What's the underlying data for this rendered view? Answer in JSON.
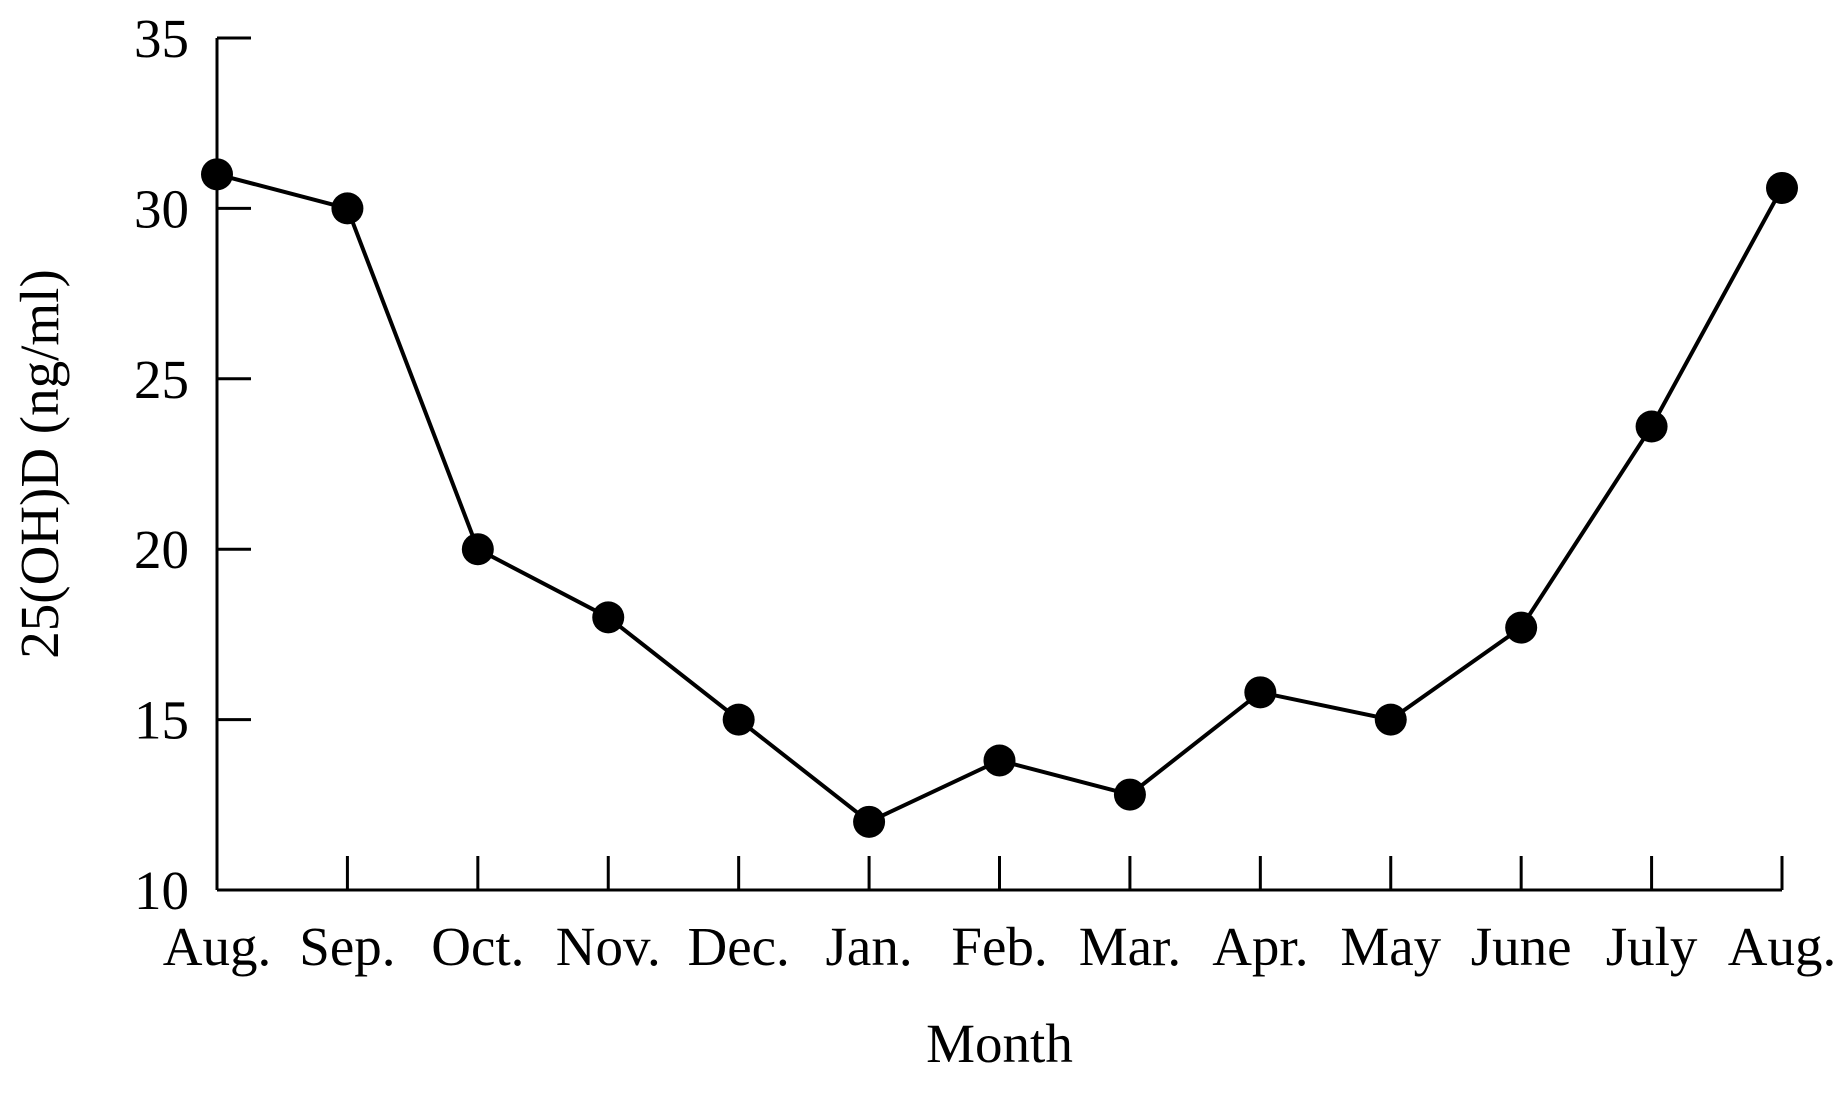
{
  "chart_data": {
    "type": "line",
    "title": "",
    "xlabel": "Month",
    "ylabel": "25(OH)D (ng/ml)",
    "categories": [
      "Aug.",
      "Sep.",
      "Oct.",
      "Nov.",
      "Dec.",
      "Jan.",
      "Feb.",
      "Mar.",
      "Apr.",
      "May",
      "June",
      "July",
      "Aug."
    ],
    "yticks": [
      "10",
      "15",
      "20",
      "25",
      "30",
      "35"
    ],
    "ylim": [
      10,
      35
    ],
    "grid": false,
    "series": [
      {
        "values": [
          31.0,
          30.0,
          20.0,
          18.0,
          15.0,
          12.0,
          13.8,
          12.8,
          15.8,
          15.0,
          17.7,
          23.6,
          30.6
        ]
      }
    ],
    "line_color": "#000000",
    "marker": "filled-circle"
  }
}
